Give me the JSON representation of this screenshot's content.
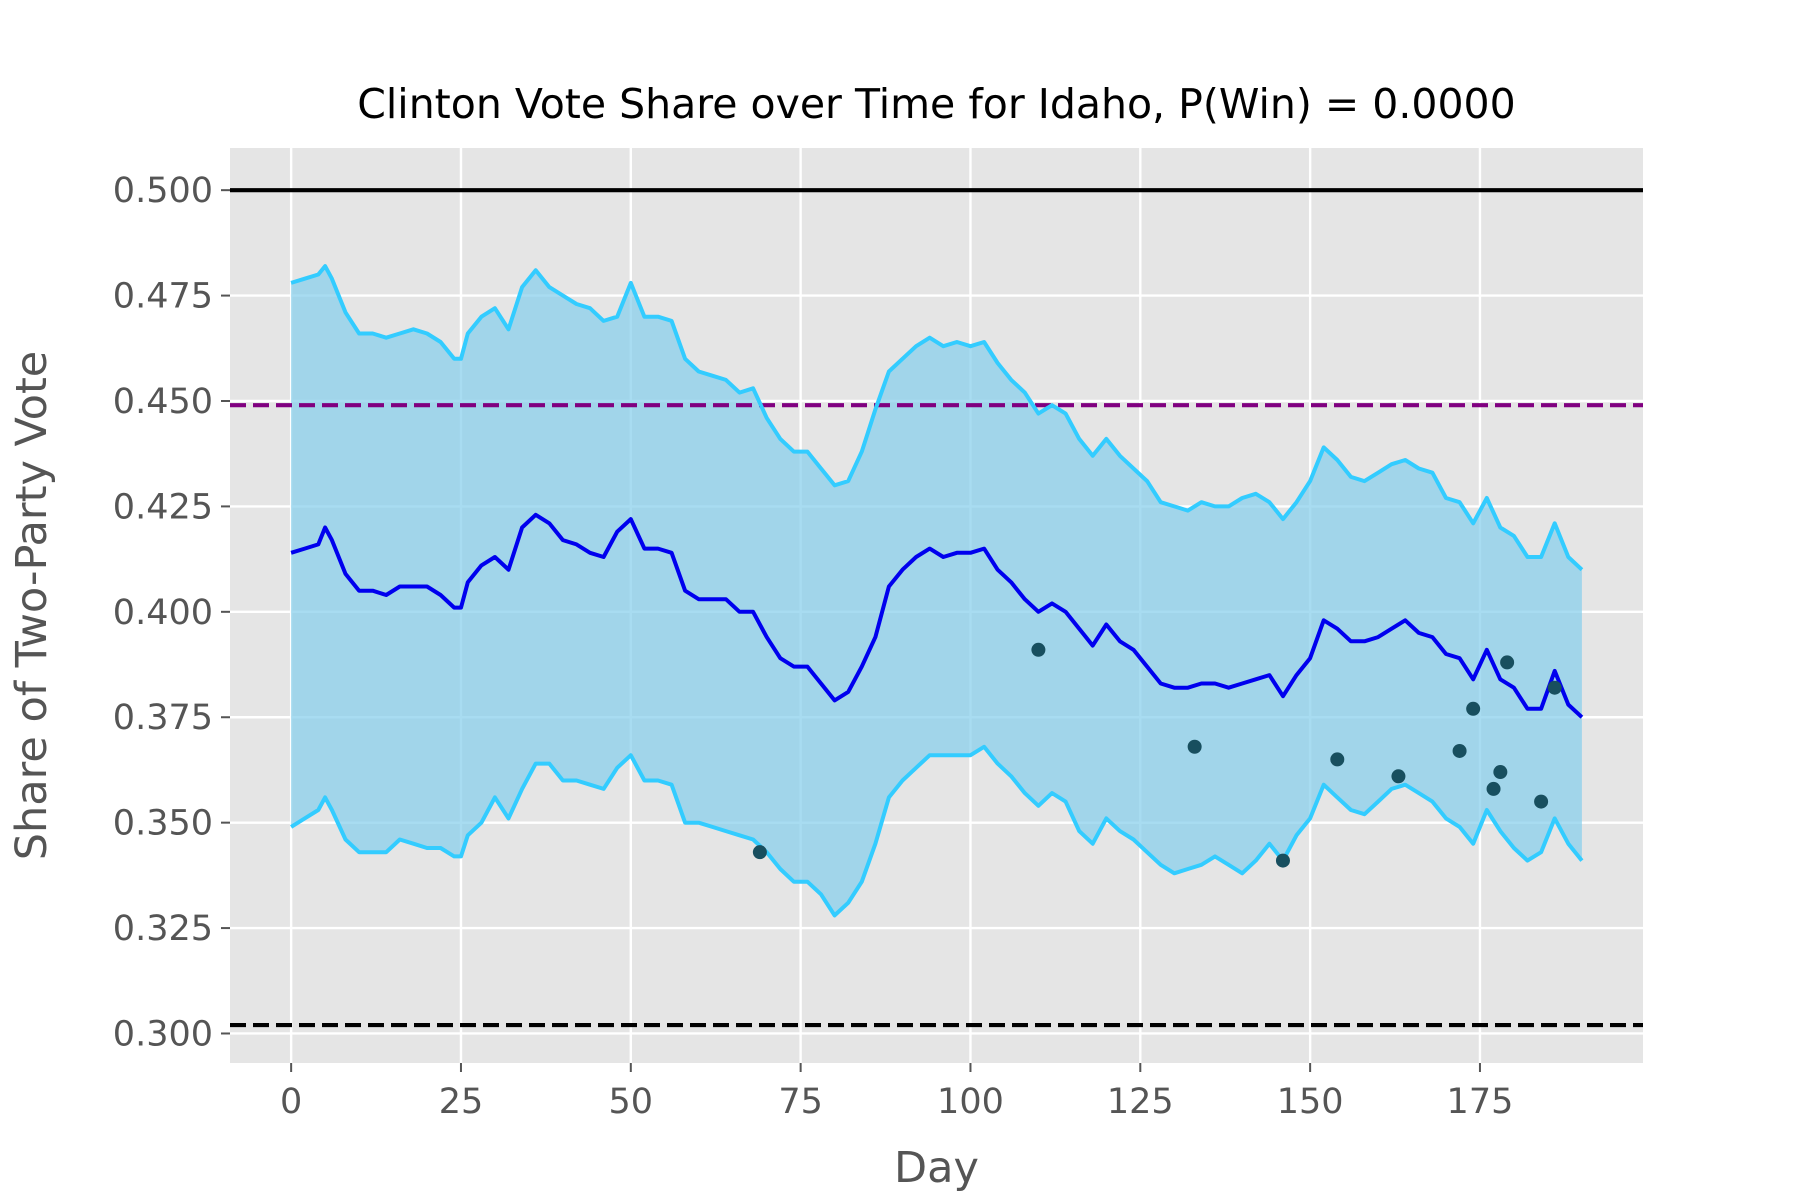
{
  "chart_data": {
    "type": "line",
    "title": "Clinton Vote Share over Time for Idaho, P(Win) = 0.0000",
    "xlabel": "Day",
    "ylabel": "Share of Two-Party Vote",
    "xlim": [
      -9,
      199
    ],
    "ylim": [
      0.293,
      0.51
    ],
    "xticks": [
      0,
      25,
      50,
      75,
      100,
      125,
      150,
      175
    ],
    "yticks": [
      0.3,
      0.325,
      0.35,
      0.375,
      0.4,
      0.425,
      0.45,
      0.475,
      0.5
    ],
    "xtick_labels": [
      "0",
      "25",
      "50",
      "75",
      "100",
      "125",
      "150",
      "175"
    ],
    "ytick_labels": [
      "0.300",
      "0.325",
      "0.350",
      "0.375",
      "0.400",
      "0.425",
      "0.450",
      "0.475",
      "0.500"
    ],
    "grid": true,
    "legend": "none",
    "colors": {
      "plot_background": "#e5e5e5",
      "grid": "#ffffff",
      "band_fill": "#87ceeb",
      "band_line": "#33ccff",
      "mean_line": "#0000ee",
      "poll_points": "#184f5f",
      "threshold_solid": "#000000",
      "threshold_dashed_purple": "#800080",
      "threshold_dashed_black": "#000000"
    },
    "reference_lines": [
      {
        "y": 0.5,
        "style": "solid",
        "color": "#000000"
      },
      {
        "y": 0.449,
        "style": "dashed",
        "color": "#800080"
      },
      {
        "y": 0.302,
        "style": "dashed",
        "color": "#000000"
      }
    ],
    "series": [
      {
        "role": "upper-bound",
        "x": [
          0,
          2,
          4,
          5,
          6,
          8,
          10,
          12,
          14,
          16,
          18,
          20,
          22,
          24,
          25,
          26,
          28,
          30,
          32,
          34,
          36,
          38,
          40,
          42,
          44,
          46,
          48,
          50,
          52,
          54,
          56,
          58,
          60,
          62,
          64,
          66,
          68,
          70,
          72,
          74,
          76,
          78,
          80,
          82,
          84,
          86,
          88,
          90,
          92,
          94,
          96,
          98,
          100,
          102,
          104,
          106,
          108,
          110,
          112,
          114,
          116,
          118,
          120,
          122,
          124,
          126,
          128,
          130,
          132,
          134,
          136,
          138,
          140,
          142,
          144,
          146,
          148,
          150,
          152,
          154,
          156,
          158,
          160,
          162,
          164,
          166,
          168,
          170,
          172,
          174,
          176,
          178,
          180,
          182,
          184,
          186,
          188,
          190
        ],
        "values": [
          0.478,
          0.479,
          0.48,
          0.482,
          0.479,
          0.471,
          0.466,
          0.466,
          0.465,
          0.466,
          0.467,
          0.466,
          0.464,
          0.46,
          0.46,
          0.466,
          0.47,
          0.472,
          0.467,
          0.477,
          0.481,
          0.477,
          0.475,
          0.473,
          0.472,
          0.469,
          0.47,
          0.478,
          0.47,
          0.47,
          0.469,
          0.46,
          0.457,
          0.456,
          0.455,
          0.452,
          0.453,
          0.446,
          0.441,
          0.438,
          0.438,
          0.434,
          0.43,
          0.431,
          0.438,
          0.448,
          0.457,
          0.46,
          0.463,
          0.465,
          0.463,
          0.464,
          0.463,
          0.464,
          0.459,
          0.455,
          0.452,
          0.447,
          0.449,
          0.447,
          0.441,
          0.437,
          0.441,
          0.437,
          0.434,
          0.431,
          0.426,
          0.425,
          0.424,
          0.426,
          0.425,
          0.425,
          0.427,
          0.428,
          0.426,
          0.422,
          0.426,
          0.431,
          0.439,
          0.436,
          0.432,
          0.431,
          0.433,
          0.435,
          0.436,
          0.434,
          0.433,
          0.427,
          0.426,
          0.421,
          0.427,
          0.42,
          0.418,
          0.413,
          0.413,
          0.421,
          0.413,
          0.41
        ]
      },
      {
        "role": "mean",
        "x": [
          0,
          2,
          4,
          5,
          6,
          8,
          10,
          12,
          14,
          16,
          18,
          20,
          22,
          24,
          25,
          26,
          28,
          30,
          32,
          34,
          36,
          38,
          40,
          42,
          44,
          46,
          48,
          50,
          52,
          54,
          56,
          58,
          60,
          62,
          64,
          66,
          68,
          70,
          72,
          74,
          76,
          78,
          80,
          82,
          84,
          86,
          88,
          90,
          92,
          94,
          96,
          98,
          100,
          102,
          104,
          106,
          108,
          110,
          112,
          114,
          116,
          118,
          120,
          122,
          124,
          126,
          128,
          130,
          132,
          134,
          136,
          138,
          140,
          142,
          144,
          146,
          148,
          150,
          152,
          154,
          156,
          158,
          160,
          162,
          164,
          166,
          168,
          170,
          172,
          174,
          176,
          178,
          180,
          182,
          184,
          186,
          188,
          190
        ],
        "values": [
          0.414,
          0.415,
          0.416,
          0.42,
          0.417,
          0.409,
          0.405,
          0.405,
          0.404,
          0.406,
          0.406,
          0.406,
          0.404,
          0.401,
          0.401,
          0.407,
          0.411,
          0.413,
          0.41,
          0.42,
          0.423,
          0.421,
          0.417,
          0.416,
          0.414,
          0.413,
          0.419,
          0.422,
          0.415,
          0.415,
          0.414,
          0.405,
          0.403,
          0.403,
          0.403,
          0.4,
          0.4,
          0.394,
          0.389,
          0.387,
          0.387,
          0.383,
          0.379,
          0.381,
          0.387,
          0.394,
          0.406,
          0.41,
          0.413,
          0.415,
          0.413,
          0.414,
          0.414,
          0.415,
          0.41,
          0.407,
          0.403,
          0.4,
          0.402,
          0.4,
          0.396,
          0.392,
          0.397,
          0.393,
          0.391,
          0.387,
          0.383,
          0.382,
          0.382,
          0.383,
          0.383,
          0.382,
          0.383,
          0.384,
          0.385,
          0.38,
          0.385,
          0.389,
          0.398,
          0.396,
          0.393,
          0.393,
          0.394,
          0.396,
          0.398,
          0.395,
          0.394,
          0.39,
          0.389,
          0.384,
          0.391,
          0.384,
          0.382,
          0.377,
          0.377,
          0.386,
          0.378,
          0.375
        ]
      },
      {
        "role": "lower-bound",
        "x": [
          0,
          2,
          4,
          5,
          6,
          8,
          10,
          12,
          14,
          16,
          18,
          20,
          22,
          24,
          25,
          26,
          28,
          30,
          32,
          34,
          36,
          38,
          40,
          42,
          44,
          46,
          48,
          50,
          52,
          54,
          56,
          58,
          60,
          62,
          64,
          66,
          68,
          70,
          72,
          74,
          76,
          78,
          80,
          82,
          84,
          86,
          88,
          90,
          92,
          94,
          96,
          98,
          100,
          102,
          104,
          106,
          108,
          110,
          112,
          114,
          116,
          118,
          120,
          122,
          124,
          126,
          128,
          130,
          132,
          134,
          136,
          138,
          140,
          142,
          144,
          146,
          148,
          150,
          152,
          154,
          156,
          158,
          160,
          162,
          164,
          166,
          168,
          170,
          172,
          174,
          176,
          178,
          180,
          182,
          184,
          186,
          188,
          190
        ],
        "values": [
          0.349,
          0.351,
          0.353,
          0.356,
          0.353,
          0.346,
          0.343,
          0.343,
          0.343,
          0.346,
          0.345,
          0.344,
          0.344,
          0.342,
          0.342,
          0.347,
          0.35,
          0.356,
          0.351,
          0.358,
          0.364,
          0.364,
          0.36,
          0.36,
          0.359,
          0.358,
          0.363,
          0.366,
          0.36,
          0.36,
          0.359,
          0.35,
          0.35,
          0.349,
          0.348,
          0.347,
          0.346,
          0.343,
          0.339,
          0.336,
          0.336,
          0.333,
          0.328,
          0.331,
          0.336,
          0.345,
          0.356,
          0.36,
          0.363,
          0.366,
          0.366,
          0.366,
          0.366,
          0.368,
          0.364,
          0.361,
          0.357,
          0.354,
          0.357,
          0.355,
          0.348,
          0.345,
          0.351,
          0.348,
          0.346,
          0.343,
          0.34,
          0.338,
          0.339,
          0.34,
          0.342,
          0.34,
          0.338,
          0.341,
          0.345,
          0.341,
          0.347,
          0.351,
          0.359,
          0.356,
          0.353,
          0.352,
          0.355,
          0.358,
          0.359,
          0.357,
          0.355,
          0.351,
          0.349,
          0.345,
          0.353,
          0.348,
          0.344,
          0.341,
          0.343,
          0.351,
          0.345,
          0.341
        ]
      }
    ],
    "polls": [
      {
        "x": 69,
        "y": 0.343
      },
      {
        "x": 110,
        "y": 0.391
      },
      {
        "x": 133,
        "y": 0.368
      },
      {
        "x": 146,
        "y": 0.341
      },
      {
        "x": 154,
        "y": 0.365
      },
      {
        "x": 163,
        "y": 0.361
      },
      {
        "x": 172,
        "y": 0.367
      },
      {
        "x": 174,
        "y": 0.377
      },
      {
        "x": 177,
        "y": 0.358
      },
      {
        "x": 178,
        "y": 0.362
      },
      {
        "x": 179,
        "y": 0.388
      },
      {
        "x": 184,
        "y": 0.355
      },
      {
        "x": 186,
        "y": 0.382
      }
    ]
  }
}
